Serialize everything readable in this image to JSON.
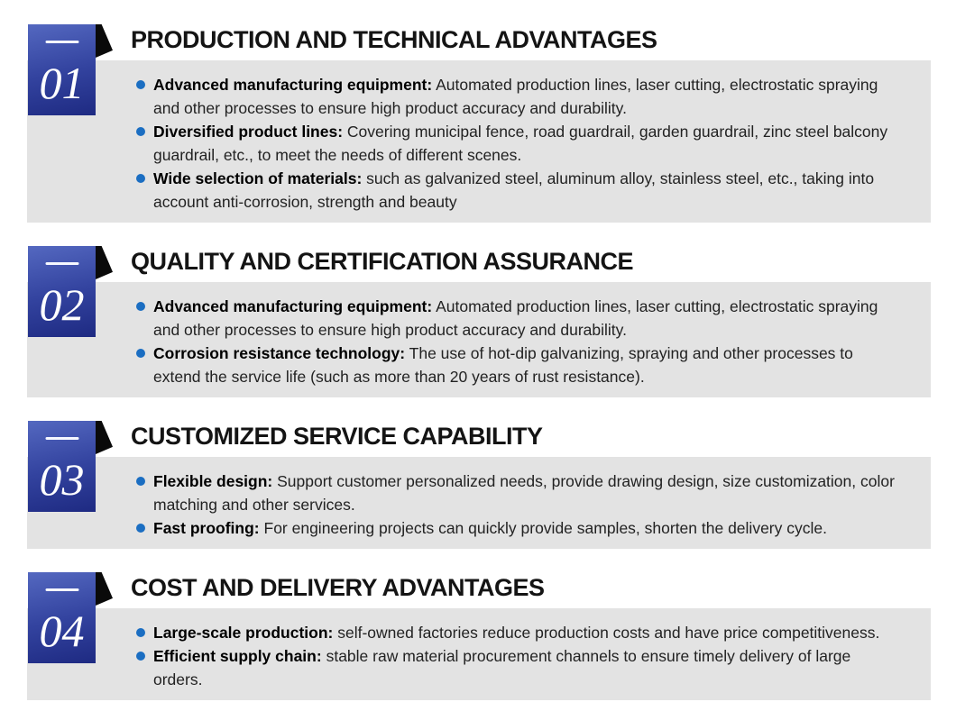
{
  "theme": {
    "badge_gradient_top": "#5468c0",
    "badge_gradient_bottom": "#1e2a82",
    "corner_fold": "#0a0a0a",
    "panel_background": "#e3e3e3",
    "bullet_dot": "#1b6ec2",
    "title_color": "#141414",
    "body_text_color": "#222222"
  },
  "sections": [
    {
      "number": "01",
      "title": "PRODUCTION AND TECHNICAL ADVANTAGES",
      "bullets": [
        {
          "lead": "Advanced manufacturing equipment:",
          "text": "Automated production lines, laser cutting, electrostatic spraying and other processes to ensure high product accuracy and durability."
        },
        {
          "lead": "Diversified product lines:",
          "text": "Covering municipal fence, road guardrail, garden guardrail, zinc steel balcony guardrail, etc., to meet the needs of different scenes."
        },
        {
          "lead": "Wide selection of materials:",
          "text": "such as galvanized steel, aluminum alloy, stainless steel, etc., taking into account anti-corrosion, strength and beauty"
        }
      ]
    },
    {
      "number": "02",
      "title": "QUALITY AND CERTIFICATION ASSURANCE",
      "bullets": [
        {
          "lead": "Advanced manufacturing equipment:",
          "text": "Automated production lines, laser cutting, electrostatic spraying and other processes to ensure high product accuracy and durability."
        },
        {
          "lead": "Corrosion resistance technology:",
          "text": "The use of hot-dip galvanizing, spraying and other processes to extend the service life (such as more than 20 years of rust resistance)."
        }
      ]
    },
    {
      "number": "03",
      "title": "CUSTOMIZED SERVICE CAPABILITY",
      "bullets": [
        {
          "lead": "Flexible design:",
          "text": "Support customer personalized needs, provide drawing design, size customization, color matching and other services."
        },
        {
          "lead": "Fast proofing:",
          "text": "For engineering projects can quickly provide samples, shorten the delivery cycle."
        }
      ]
    },
    {
      "number": "04",
      "title": "COST AND DELIVERY ADVANTAGES",
      "bullets": [
        {
          "lead": "Large-scale production:",
          "text": "self-owned factories reduce production costs and have price competitiveness."
        },
        {
          "lead": "Efficient supply chain:",
          "text": "stable raw material procurement channels to ensure timely delivery of large orders."
        }
      ]
    }
  ]
}
